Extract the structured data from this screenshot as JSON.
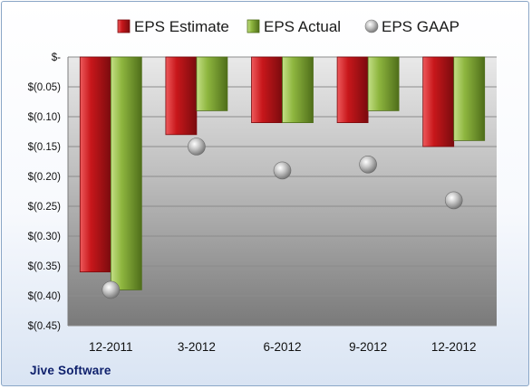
{
  "company": "Jive Software",
  "legend": [
    {
      "label": "EPS Estimate",
      "series": "estimate"
    },
    {
      "label": "EPS Actual",
      "series": "actual"
    },
    {
      "label": "EPS GAAP",
      "series": "gaap"
    }
  ],
  "colors": {
    "estimate": "#c8171b",
    "estimate_dark": "#7a0b0e",
    "estimate_light": "#ee5a5c",
    "actual": "#8eb63f",
    "actual_dark": "#4f6e1a",
    "actual_light": "#c4df86",
    "gaap": "#9a9a9a"
  },
  "chart_data": {
    "type": "bar",
    "title": "",
    "xlabel": "",
    "ylabel": "",
    "categories": [
      "12-2011",
      "3-2012",
      "6-2012",
      "9-2012",
      "12-2012"
    ],
    "series": [
      {
        "name": "EPS Estimate",
        "values": [
          -0.36,
          -0.13,
          -0.11,
          -0.11,
          -0.15
        ]
      },
      {
        "name": "EPS Actual",
        "values": [
          -0.39,
          -0.09,
          -0.11,
          -0.09,
          -0.14
        ]
      },
      {
        "name": "EPS GAAP",
        "values": [
          -0.39,
          -0.15,
          -0.19,
          -0.18,
          -0.24
        ]
      }
    ],
    "gaap_style": "marker",
    "ylim": [
      -0.45,
      0
    ],
    "yticks": [
      0,
      -0.05,
      -0.1,
      -0.15,
      -0.2,
      -0.25,
      -0.3,
      -0.35,
      -0.4,
      -0.45
    ],
    "ytick_labels": [
      "$-",
      "$(0.05)",
      "$(0.10)",
      "$(0.15)",
      "$(0.20)",
      "$(0.25)",
      "$(0.30)",
      "$(0.35)",
      "$(0.40)",
      "$(0.45)"
    ],
    "grid": true,
    "legend_position": "top"
  }
}
